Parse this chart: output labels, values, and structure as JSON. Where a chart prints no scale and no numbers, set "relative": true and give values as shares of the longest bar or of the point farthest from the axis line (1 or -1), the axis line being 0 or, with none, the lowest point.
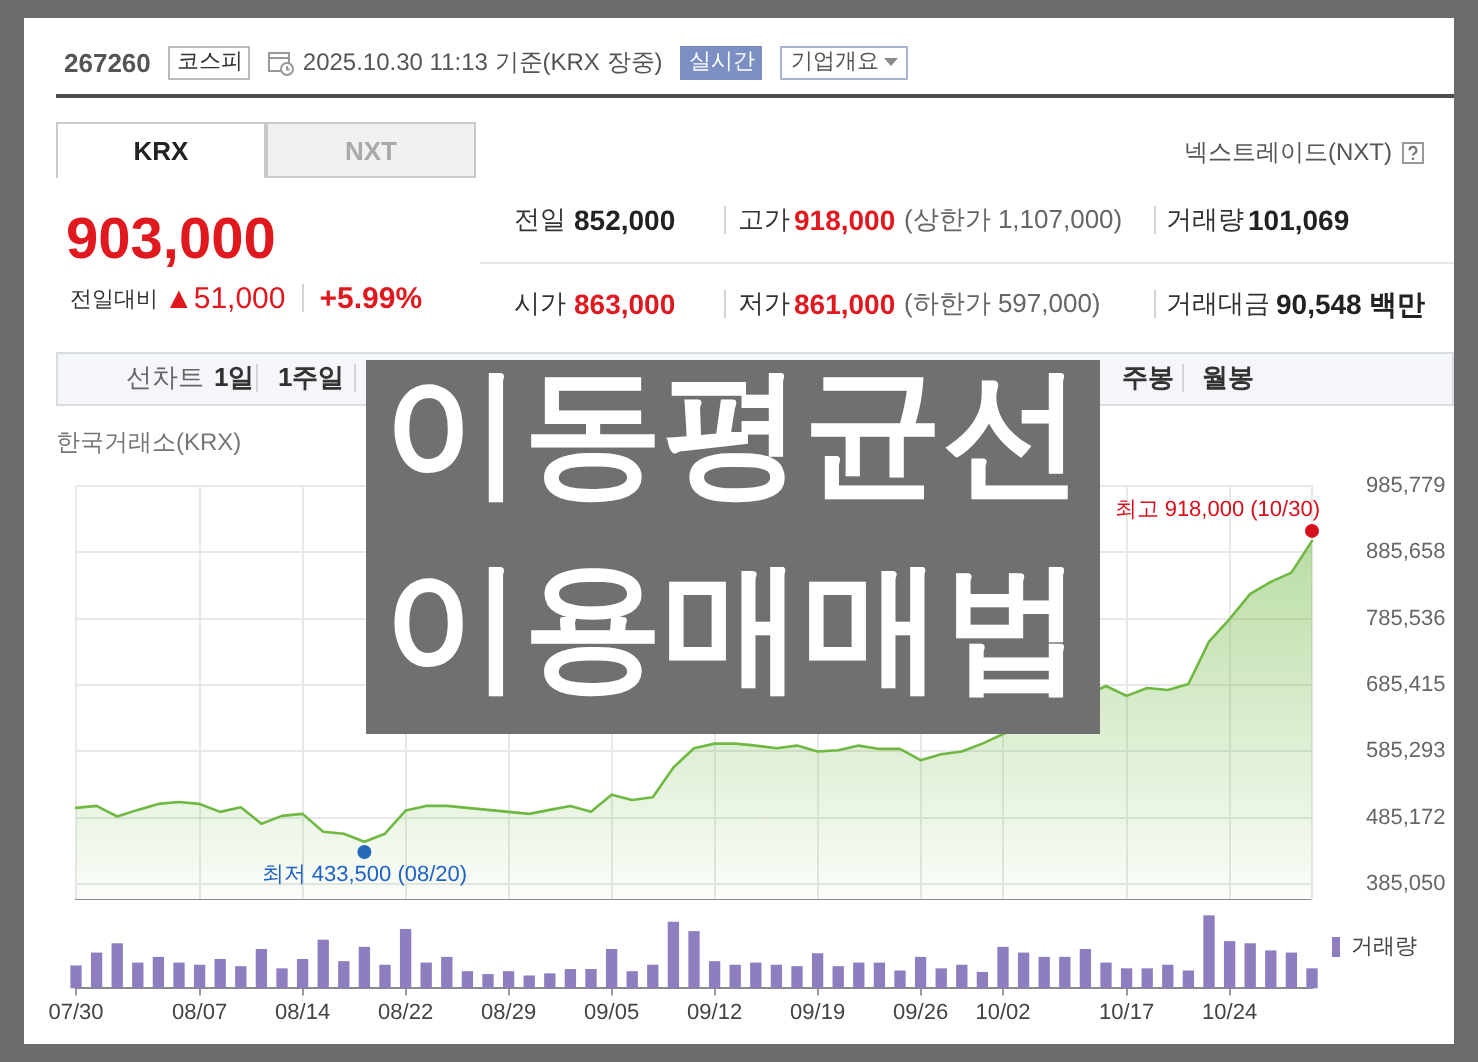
{
  "chart_data": [
    {
      "type": "other",
      "annotations": [
        "267260",
        "코스피",
        "2025.10.30 11:13 기준(KRX 장중)",
        "실시간",
        "기업개요",
        "KRX",
        "NXT",
        "넥스트레이드(NXT)",
        "903,000",
        "전일대비",
        "▲51,000",
        "+5.99%",
        "전일",
        "852,000",
        "고가",
        "918,000",
        "(상한가 1,107,000)",
        "거래량",
        "101,069",
        "시가",
        "863,000",
        "저가",
        "861,000",
        "(하한가 597,000)",
        "거래대금",
        "90,548 백만",
        "선차트",
        "1일",
        "1주일",
        "주봉",
        "월봉"
      ]
    },
    {
      "type": "area",
      "title": "이동평균선 이용매매법",
      "categories": [
        null,
        null,
        null,
        null,
        null,
        null,
        null,
        null,
        null,
        null,
        null,
        null,
        null,
        null,
        null,
        null,
        null,
        null,
        null,
        null,
        null,
        null,
        null,
        null,
        null,
        null,
        null,
        null,
        null,
        null,
        null,
        null,
        null,
        null,
        null,
        null,
        null,
        null,
        null,
        null,
        null,
        null,
        null,
        null,
        null,
        null,
        null,
        null,
        null,
        null,
        null,
        null,
        null,
        null,
        null,
        null,
        null,
        null,
        null,
        null,
        null
      ],
      "series": [
        {
          "color": "#6fb842",
          "values": [
            500000,
            503000,
            487000,
            497000,
            506000,
            509000,
            506000,
            494000,
            501000,
            476000,
            488000,
            491000,
            464000,
            461000,
            449000,
            461000,
            496000,
            503000,
            503000,
            500000,
            497000,
            494000,
            491000,
            497000,
            503000,
            494000,
            520000,
            512000,
            516000,
            561000,
            590000,
            597000,
            597000,
            594000,
            590000,
            594000,
            585000,
            587000,
            594000,
            589000,
            589000,
            572000,
            581000,
            585000,
            597000,
            null,
            null,
            null,
            null,
            null,
            684000,
            669000,
            681000,
            678000,
            687000,
            751000,
            785000,
            823000,
            841000,
            855000,
            903000
          ]
        },
        {
          "type": "scatter",
          "color": "#d7101c",
          "values": [
            null,
            null,
            null,
            null,
            null,
            null,
            null,
            null,
            null,
            null,
            null,
            null,
            null,
            null,
            null,
            null,
            null,
            null,
            null,
            null,
            null,
            null,
            null,
            null,
            null,
            null,
            null,
            null,
            null,
            null,
            null,
            null,
            null,
            null,
            null,
            null,
            null,
            null,
            null,
            null,
            null,
            null,
            null,
            null,
            null,
            null,
            null,
            null,
            null,
            null,
            null,
            null,
            null,
            null,
            null,
            null,
            null,
            null,
            null,
            null,
            918000
          ],
          "value_labels": [
            null,
            null,
            null,
            null,
            null,
            null,
            null,
            null,
            null,
            null,
            null,
            null,
            null,
            null,
            null,
            null,
            null,
            null,
            null,
            null,
            null,
            null,
            null,
            null,
            null,
            null,
            null,
            null,
            null,
            null,
            null,
            null,
            null,
            null,
            null,
            null,
            null,
            null,
            null,
            null,
            null,
            null,
            null,
            null,
            null,
            null,
            null,
            null,
            null,
            null,
            null,
            null,
            null,
            null,
            null,
            null,
            null,
            null,
            null,
            null,
            "최고 918,000 (10/30)"
          ]
        },
        {
          "type": "scatter",
          "color": "#1f62c4",
          "values": [
            null,
            null,
            null,
            null,
            null,
            null,
            null,
            null,
            null,
            null,
            null,
            null,
            null,
            null,
            433500,
            null,
            null,
            null,
            null,
            null,
            null,
            null,
            null,
            null,
            null,
            null,
            null,
            null,
            null,
            null,
            null,
            null,
            null,
            null,
            null,
            null,
            null,
            null,
            null,
            null,
            null,
            null,
            null,
            null,
            null,
            null,
            null,
            null,
            null,
            null,
            null,
            null,
            null,
            null,
            null,
            null,
            null,
            null,
            null,
            null,
            null
          ],
          "value_labels": [
            null,
            null,
            null,
            null,
            null,
            null,
            null,
            null,
            null,
            null,
            null,
            null,
            null,
            null,
            "최저 433,500 (08/20)",
            null,
            null,
            null,
            null,
            null,
            null,
            null,
            null,
            null,
            null,
            null,
            null,
            null,
            null,
            null,
            null,
            null,
            null,
            null,
            null,
            null,
            null,
            null,
            null,
            null,
            null,
            null,
            null,
            null,
            null,
            null,
            null,
            null,
            null,
            null,
            null,
            null,
            null,
            null,
            null,
            null,
            null,
            null,
            null,
            null,
            null
          ]
        }
      ],
      "ylim": [
        361000,
        985779
      ],
      "yticks": [
        {
          "value": 385050,
          "label": "385,050"
        },
        {
          "value": 485172,
          "label": "485,172"
        },
        {
          "value": 585293,
          "label": "585,293"
        },
        {
          "value": 685415,
          "label": "685,415"
        },
        {
          "value": 785536,
          "label": "785,536"
        },
        {
          "value": 885658,
          "label": "885,658"
        },
        {
          "value": 985779,
          "label": "985,779"
        }
      ],
      "grid": true,
      "tick_labels": "y",
      "annotations": [
        "한국거래소(KRX)"
      ]
    },
    {
      "type": "bar",
      "categories": [
        "07/30",
        null,
        null,
        null,
        null,
        null,
        "08/07",
        null,
        null,
        null,
        null,
        "08/14",
        null,
        null,
        null,
        null,
        "08/22",
        null,
        null,
        null,
        null,
        "08/29",
        null,
        null,
        null,
        null,
        "09/05",
        null,
        null,
        null,
        null,
        "09/12",
        null,
        null,
        null,
        null,
        "09/19",
        null,
        null,
        null,
        null,
        "09/26",
        null,
        null,
        null,
        "10/02",
        null,
        null,
        null,
        null,
        null,
        "10/17",
        null,
        null,
        null,
        null,
        "10/24",
        null,
        null,
        null,
        null
      ],
      "series": [
        {
          "name": "거래량",
          "color": "#8e7dbf",
          "values": [
            0.3,
            0.48,
            0.61,
            0.34,
            0.42,
            0.34,
            0.31,
            0.39,
            0.29,
            0.53,
            0.26,
            0.39,
            0.66,
            0.36,
            0.56,
            0.31,
            0.81,
            0.34,
            0.42,
            0.22,
            0.18,
            0.22,
            0.16,
            0.19,
            0.25,
            0.25,
            0.53,
            0.22,
            0.31,
            0.91,
            0.78,
            0.36,
            0.31,
            0.34,
            0.31,
            0.29,
            0.47,
            0.29,
            0.34,
            0.34,
            0.23,
            0.42,
            0.26,
            0.31,
            0.21,
            0.56,
            0.48,
            0.42,
            0.42,
            0.53,
            0.34,
            0.26,
            0.26,
            0.31,
            0.23,
            1,
            0.64,
            0.61,
            0.51,
            0.48,
            0.26
          ]
        }
      ],
      "relative": true,
      "legend": "top right"
    }
  ]
}
